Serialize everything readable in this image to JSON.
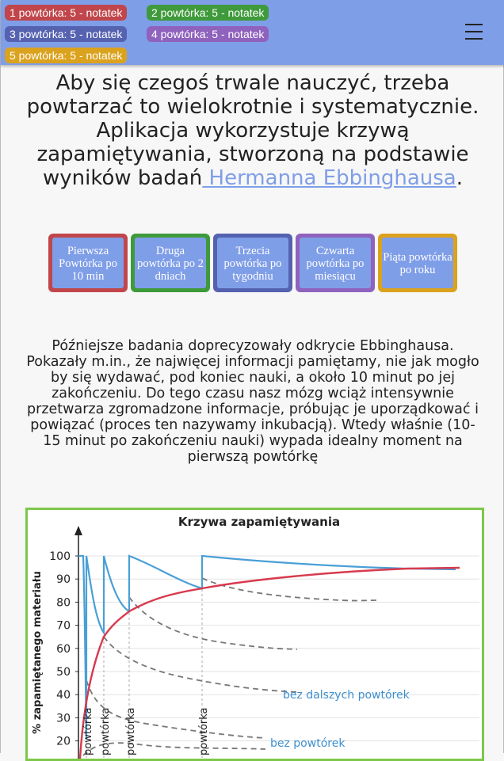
{
  "header": {
    "badges": [
      {
        "label": "1 powtórka: 5 - notatek",
        "color": "#c0464b"
      },
      {
        "label": "2 powtórka: 5 - notatek",
        "color": "#3f9a3b"
      },
      {
        "label": "3 powtórka: 5 - notatek",
        "color": "#5462b0"
      },
      {
        "label": "4 powtórka: 5 - notatek",
        "color": "#8f62bd"
      },
      {
        "label": "5 powtórka: 5 - notatek",
        "color": "#dba21e"
      }
    ],
    "menu_icon": "hamburger-icon",
    "background": "#7f9ee8"
  },
  "intro": {
    "text": "Aby się czegoś trwale nauczyć, trzeba powtarzać to wielokrotnie i systematycznie. Aplikacja wykorzystuje krzywą zapamiętywania, stworzoną na podstawie wyników badań",
    "link": " Hermanna Ebbinghausa",
    "end": "."
  },
  "repetitions": [
    {
      "label": "Pierwsza Powtórka po 10 min",
      "color": "#c0464b"
    },
    {
      "label": "Druga powtórka po 2 dniach",
      "color": "#3f9a3b"
    },
    {
      "label": "Trzecia powtórka po tygodniu",
      "color": "#5462b0"
    },
    {
      "label": "Czwarta powtórka po miesiącu",
      "color": "#8f62bd"
    },
    {
      "label": "Piąta powtórka po roku",
      "color": "#dba21e"
    }
  ],
  "paragraph": "Późniejsze badania doprecyzowały odkrycie Ebbinghausa. Pokazały m.in., że najwięcej informacji pamiętamy, nie jak mogło by się wydawać, pod koniec nauki, a około 10 minut po jej zakończeniu. Do tego czasu nasz mózg wciąż intensywnie przetwarza zgromadzone informacje, próbując je uporządkować i powiązać (proces ten nazywamy inkubacją). Wtedy właśnie (10-15 minut po zakończeniu nauki) wypada idealny moment na pierwszą powtórkę",
  "chart_data": {
    "type": "line",
    "title": "Krzywa zapamiętywania",
    "ylabel": "% zapamiętanego materiału",
    "y_ticks": [
      100,
      90,
      80,
      70,
      60,
      50,
      40,
      30,
      20
    ],
    "ylim": [
      15,
      105
    ],
    "x_labels": [
      "powtórka",
      "powtórka",
      "powtórka",
      "powtórka"
    ],
    "annotations": [
      "bez dalszych powtórek",
      "bez powtórek"
    ],
    "colors": {
      "repeat": "#4a9fd6",
      "retention": "#d83a4e",
      "dashed": "#777777"
    },
    "series": [
      {
        "values": [
          100,
          20,
          100,
          62,
          100,
          76,
          100,
          86,
          95
        ]
      },
      {
        "values": [
          15,
          66,
          76,
          86,
          95
        ]
      }
    ]
  }
}
